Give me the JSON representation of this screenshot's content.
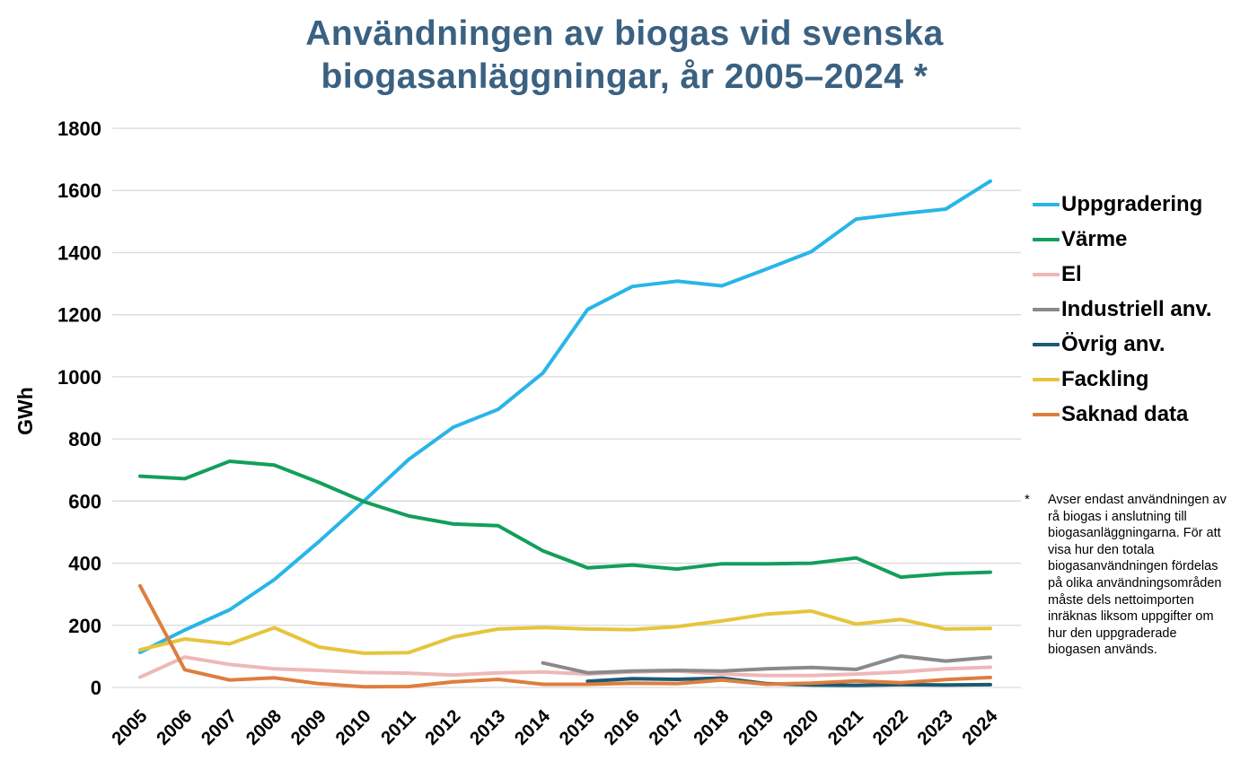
{
  "title": "Användningen av biogas vid svenska biogasanläggningar, år 2005–2024 *",
  "footnote": {
    "marker": "*",
    "text": "Avser endast användningen av rå biogas i anslutning till biogasanläggningarna. För att visa hur den totala biogasanvändningen fördelas på olika användningsområden måste dels nettoimporten inräknas liksom uppgifter om hur den uppgraderade biogasen används."
  },
  "chart_data": {
    "type": "line",
    "title": "Användningen av biogas vid svenska biogasanläggningar, år 2005–2024 *",
    "xlabel": "",
    "ylabel": "GWh",
    "x": [
      2005,
      2006,
      2007,
      2008,
      2009,
      2010,
      2011,
      2012,
      2013,
      2014,
      2015,
      2016,
      2017,
      2018,
      2019,
      2020,
      2021,
      2022,
      2023,
      2024
    ],
    "ylim": [
      0,
      1800
    ],
    "ytick_step": 200,
    "grid": "horizontal-only",
    "grid_color": "#D9D9D9",
    "legend_position": "right",
    "series": [
      {
        "name": "Uppgradering",
        "color": "#29B5E8",
        "values": [
          113,
          185,
          250,
          347,
          470,
          600,
          734,
          838,
          895,
          1012,
          1217,
          1291,
          1308,
          1293,
          1347,
          1403,
          1508,
          1525,
          1540,
          1630
        ]
      },
      {
        "name": "Värme",
        "color": "#149E5C",
        "values": [
          680,
          672,
          728,
          716,
          660,
          598,
          552,
          526,
          521,
          440,
          385,
          394,
          381,
          398,
          398,
          400,
          417,
          355,
          366,
          371
        ]
      },
      {
        "name": "El",
        "color": "#EEB8B8",
        "values": [
          33,
          98,
          74,
          60,
          55,
          48,
          46,
          40,
          47,
          50,
          43,
          50,
          53,
          43,
          38,
          38,
          43,
          50,
          60,
          65
        ]
      },
      {
        "name": "Industriell anv.",
        "color": "#8A8A8A",
        "values": [
          null,
          null,
          null,
          null,
          null,
          null,
          null,
          null,
          null,
          79,
          47,
          53,
          55,
          53,
          60,
          64,
          58,
          101,
          85,
          97
        ]
      },
      {
        "name": "Övrig anv.",
        "color": "#1A5A75",
        "values": [
          null,
          null,
          null,
          null,
          null,
          null,
          null,
          null,
          null,
          null,
          20,
          28,
          26,
          30,
          12,
          8,
          7,
          9,
          8,
          9
        ]
      },
      {
        "name": "Fackling",
        "color": "#E6C53D",
        "values": [
          121,
          156,
          140,
          192,
          130,
          110,
          112,
          162,
          188,
          193,
          188,
          186,
          196,
          214,
          236,
          246,
          204,
          219,
          188,
          190
        ]
      },
      {
        "name": "Saknad data",
        "color": "#DE7E3E",
        "values": [
          327,
          57,
          24,
          31,
          12,
          2,
          3,
          18,
          26,
          10,
          10,
          14,
          12,
          24,
          10,
          14,
          21,
          15,
          25,
          32
        ]
      }
    ]
  }
}
